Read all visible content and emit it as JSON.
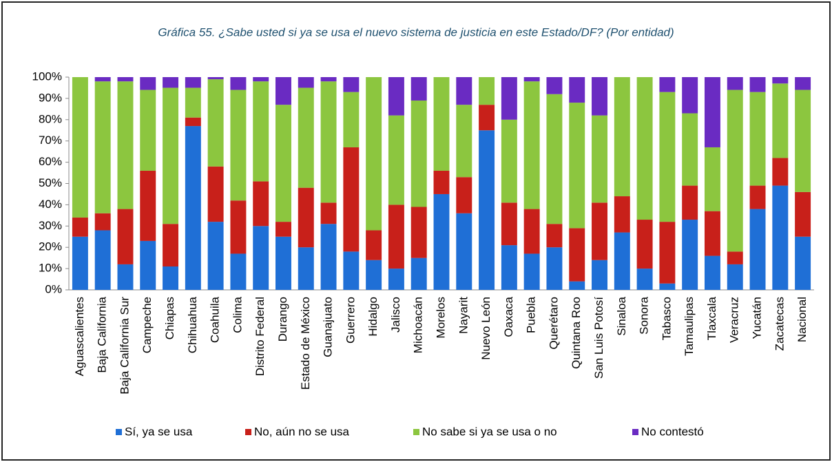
{
  "chart_data": {
    "type": "stacked_bar",
    "title": "Gráfica 55. ¿Sabe usted si ya se usa el nuevo sistema de justicia en este Estado/DF? (Por entidad)",
    "categories": [
      "Aguascalientes",
      "Baja California",
      "Baja California Sur",
      "Campeche",
      "Chiapas",
      "Chihuahua",
      "Coahuila",
      "Colima",
      "Distrito Federal",
      "Durango",
      "Estado de México",
      "Guanajuato",
      "Guerrero",
      "Hidalgo",
      "Jalisco",
      "Michoacán",
      "Morelos",
      "Nayarit",
      "Nuevo León",
      "Oaxaca",
      "Puebla",
      "Querétaro",
      "Quintana Roo",
      "San Luis Potosí",
      "Sinaloa",
      "Sonora",
      "Tabasco",
      "Tamaulipas",
      "Tlaxcala",
      "Veracruz",
      "Yucatán",
      "Zacatecas",
      "Nacional"
    ],
    "series": [
      {
        "name": "Sí, ya se usa",
        "color": "#1f6fd6",
        "values": [
          25,
          28,
          12,
          23,
          11,
          77,
          32,
          17,
          30,
          25,
          20,
          31,
          18,
          14,
          10,
          15,
          45,
          36,
          75,
          21,
          17,
          20,
          4,
          14,
          27,
          10,
          3,
          33,
          16,
          12,
          38,
          49,
          25
        ]
      },
      {
        "name": "No, aún no se usa",
        "color": "#c8201a",
        "values": [
          9,
          8,
          26,
          33,
          20,
          4,
          26,
          25,
          21,
          7,
          28,
          10,
          49,
          14,
          30,
          24,
          11,
          17,
          12,
          20,
          21,
          11,
          25,
          27,
          17,
          23,
          29,
          16,
          21,
          6,
          11,
          13,
          21
        ]
      },
      {
        "name": "No sabe si ya se usa o no",
        "color": "#8cc63f",
        "values": [
          66,
          62,
          60,
          38,
          64,
          14,
          41,
          52,
          47,
          55,
          47,
          57,
          26,
          72,
          42,
          50,
          44,
          34,
          13,
          39,
          60,
          61,
          59,
          41,
          56,
          67,
          61,
          34,
          30,
          76,
          44,
          35,
          48
        ]
      },
      {
        "name": "No contestó",
        "color": "#6a2bc2",
        "values": [
          0,
          2,
          2,
          6,
          5,
          5,
          1,
          6,
          2,
          13,
          5,
          2,
          7,
          0,
          18,
          11,
          0,
          13,
          0,
          20,
          2,
          8,
          12,
          18,
          0,
          0,
          7,
          17,
          33,
          6,
          7,
          3,
          6
        ]
      }
    ],
    "ylim": [
      0,
      100
    ],
    "yticks": [
      {
        "value": 0,
        "label": "0%"
      },
      {
        "value": 10,
        "label": "10%"
      },
      {
        "value": 20,
        "label": "20%"
      },
      {
        "value": 30,
        "label": "30%"
      },
      {
        "value": 40,
        "label": "40%"
      },
      {
        "value": 50,
        "label": "50%"
      },
      {
        "value": 60,
        "label": "60%"
      },
      {
        "value": 70,
        "label": "70%"
      },
      {
        "value": 80,
        "label": "80%"
      },
      {
        "value": 90,
        "label": "90%"
      },
      {
        "value": 100,
        "label": "100%"
      }
    ],
    "legend": "bottom"
  }
}
